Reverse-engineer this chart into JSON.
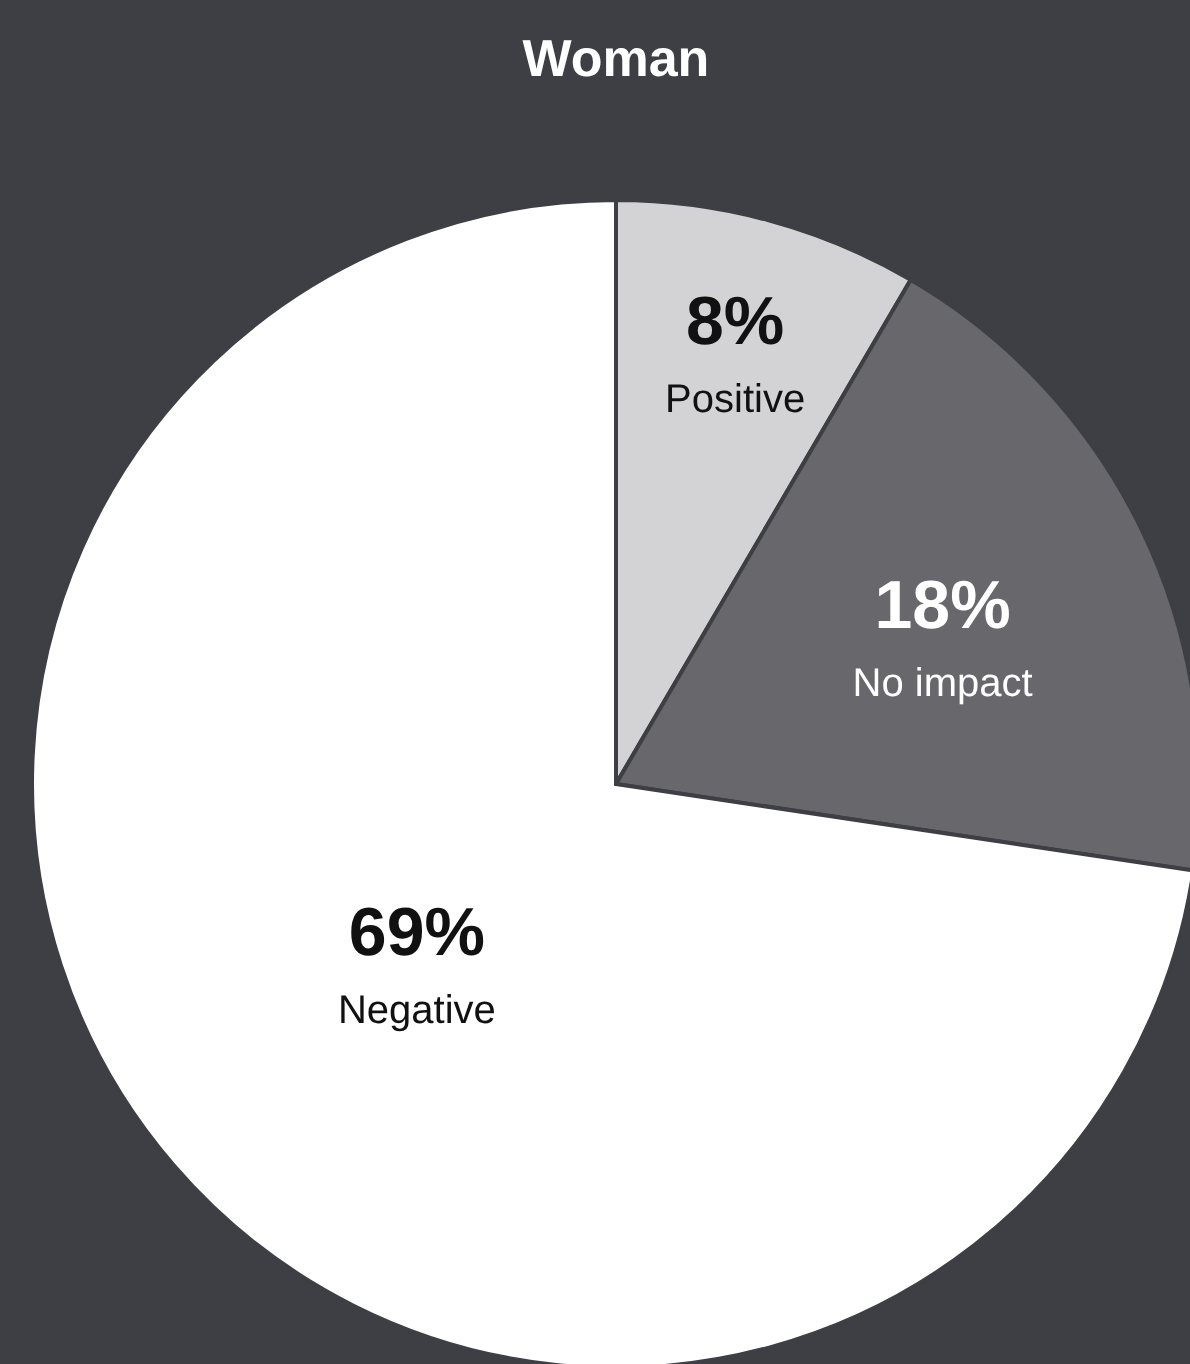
{
  "chart_data": {
    "type": "pie",
    "title": "Woman",
    "categories": [
      "Positive",
      "No impact",
      "Negative"
    ],
    "values": [
      8,
      18,
      69
    ],
    "value_labels": [
      "8%",
      "18%",
      "69%"
    ],
    "colors": [
      "#d3d3d5",
      "#68676b",
      "#ffffff"
    ]
  }
}
